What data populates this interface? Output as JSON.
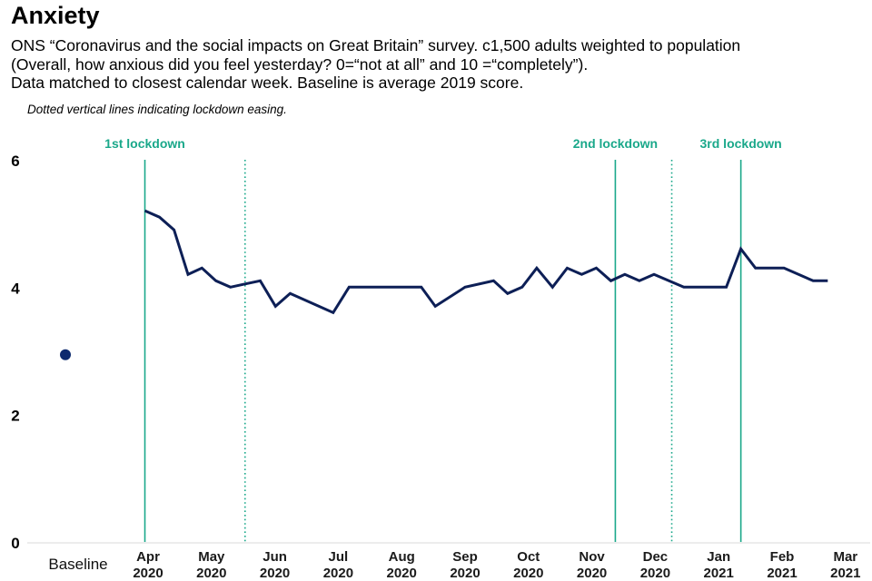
{
  "header": {
    "title": "Anxiety",
    "subtitle_lines": [
      "ONS “Coronavirus and the social impacts on Great Britain” survey. c1,500 adults weighted to population",
      "(Overall, how anxious did you feel yesterday? 0=“not at all” and 10 =“completely”).",
      "Data matched to closest calendar week. Baseline is average 2019 score."
    ],
    "note": "Dotted vertical lines indicating lockdown easing."
  },
  "colors": {
    "series": "#0d1f56",
    "baseline_dot": "#0d2a6e",
    "lockdown": "#1aa88a",
    "axis": "#d9d9d9"
  },
  "chart_data": {
    "type": "line",
    "title": "Anxiety",
    "xlabel": "",
    "ylabel": "",
    "ylim": [
      0,
      6
    ],
    "yticks": [
      0,
      2,
      4,
      6
    ],
    "grid": false,
    "legend": "none",
    "baseline": {
      "label": "Baseline",
      "value": 2.94
    },
    "x_tick_labels": [
      {
        "month": "Apr",
        "year": "2020",
        "x": 0
      },
      {
        "month": "May",
        "year": "2020",
        "x": 1
      },
      {
        "month": "Jun",
        "year": "2020",
        "x": 2
      },
      {
        "month": "Jul",
        "year": "2020",
        "x": 3
      },
      {
        "month": "Aug",
        "year": "2020",
        "x": 4
      },
      {
        "month": "Sep",
        "year": "2020",
        "x": 5
      },
      {
        "month": "Oct",
        "year": "2020",
        "x": 6
      },
      {
        "month": "Nov",
        "year": "2020",
        "x": 7
      },
      {
        "month": "Dec",
        "year": "2020",
        "x": 8
      },
      {
        "month": "Jan",
        "year": "2021",
        "x": 9
      },
      {
        "month": "Feb",
        "year": "2021",
        "x": 10
      },
      {
        "month": "Mar",
        "year": "2021",
        "x": 11
      }
    ],
    "x_unit": "months since start of April 2020",
    "series": [
      {
        "name": "Anxiety score",
        "x": [
          -0.05,
          0.18,
          0.41,
          0.63,
          0.85,
          1.07,
          1.3,
          1.53,
          1.77,
          2.01,
          2.24,
          2.92,
          3.17,
          4.31,
          4.53,
          5.0,
          5.45,
          5.67,
          5.9,
          6.13,
          6.38,
          6.61,
          6.84,
          7.07,
          7.3,
          7.52,
          7.75,
          7.98,
          8.45,
          9.12,
          9.35,
          9.58,
          10.03,
          10.49,
          10.72
        ],
        "values": [
          5.2,
          5.1,
          4.9,
          4.2,
          4.3,
          4.1,
          4.0,
          4.05,
          4.1,
          3.7,
          3.9,
          3.6,
          4.0,
          4.0,
          3.7,
          4.0,
          4.1,
          3.9,
          4.0,
          4.3,
          4.0,
          4.3,
          4.2,
          4.3,
          4.1,
          4.2,
          4.1,
          4.2,
          4.0,
          4.0,
          4.6,
          4.3,
          4.3,
          4.1,
          4.1
        ]
      }
    ],
    "lockdowns": [
      {
        "label": "1st lockdown",
        "x": -0.05
      },
      {
        "label": "2nd lockdown",
        "x": 7.37
      },
      {
        "label": "3rd lockdown",
        "x": 9.35
      }
    ],
    "easing_lines": [
      {
        "x": 1.53
      },
      {
        "x": 8.26
      }
    ]
  }
}
